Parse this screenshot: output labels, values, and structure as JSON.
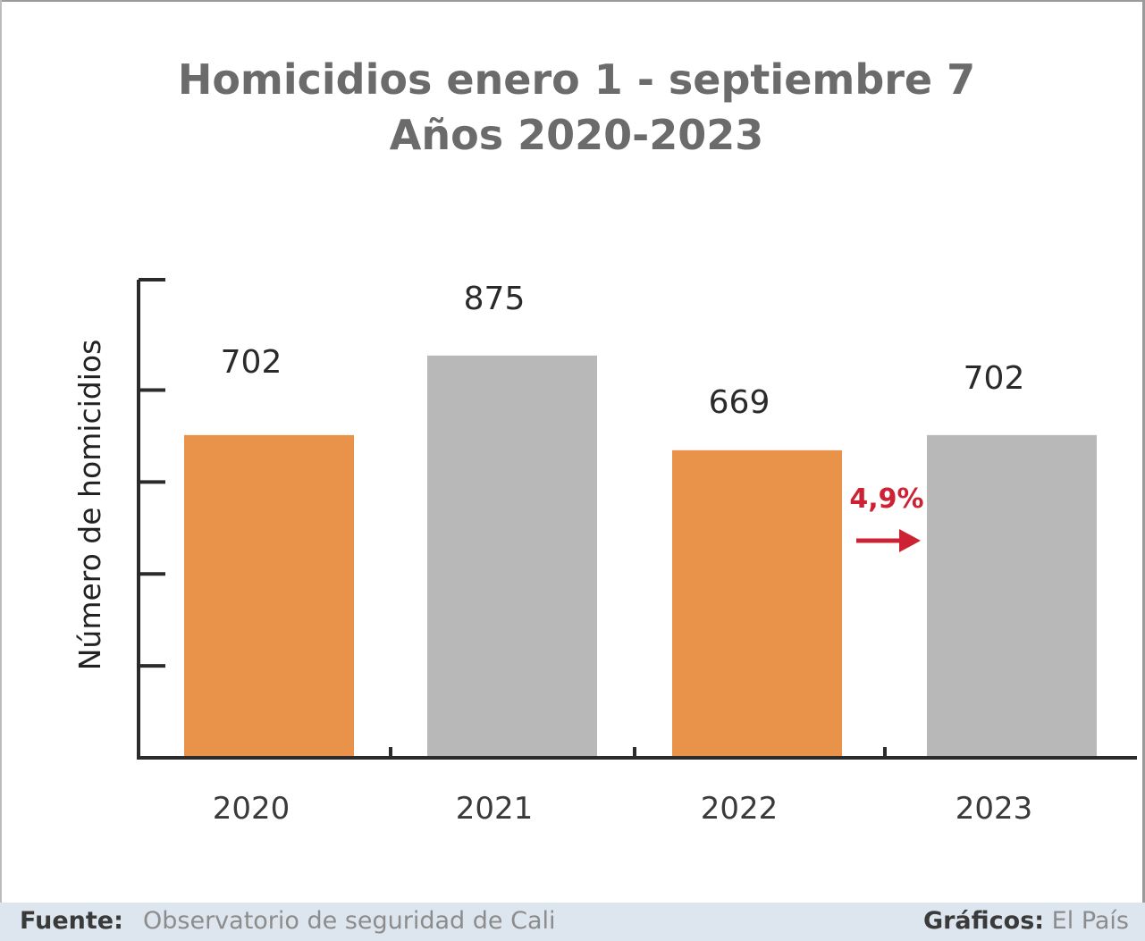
{
  "chart_data": {
    "type": "bar",
    "title_lines": [
      "Homicidios enero 1 - septiembre 7",
      "Años 2020-2023"
    ],
    "ylabel": "Número de homicidios",
    "categories": [
      "2020",
      "2021",
      "2022",
      "2023"
    ],
    "values": [
      702,
      875,
      669,
      702
    ],
    "value_labels": [
      "702",
      "875",
      "669",
      "702"
    ],
    "bar_colors": [
      "#e8924a",
      "#b8b8b8",
      "#e8924a",
      "#b8b8b8"
    ],
    "ylim": [
      0,
      1040
    ],
    "y_ticks": [
      0,
      200,
      400,
      600,
      800
    ],
    "annotation": {
      "text": "4,9%",
      "color": "#cc2233",
      "between": [
        "2022",
        "2023"
      ]
    }
  },
  "footer": {
    "source_label": "Fuente:",
    "source_value": "Observatorio de seguridad de Cali",
    "credit_label": "Gráficos:",
    "credit_value": "El País"
  }
}
